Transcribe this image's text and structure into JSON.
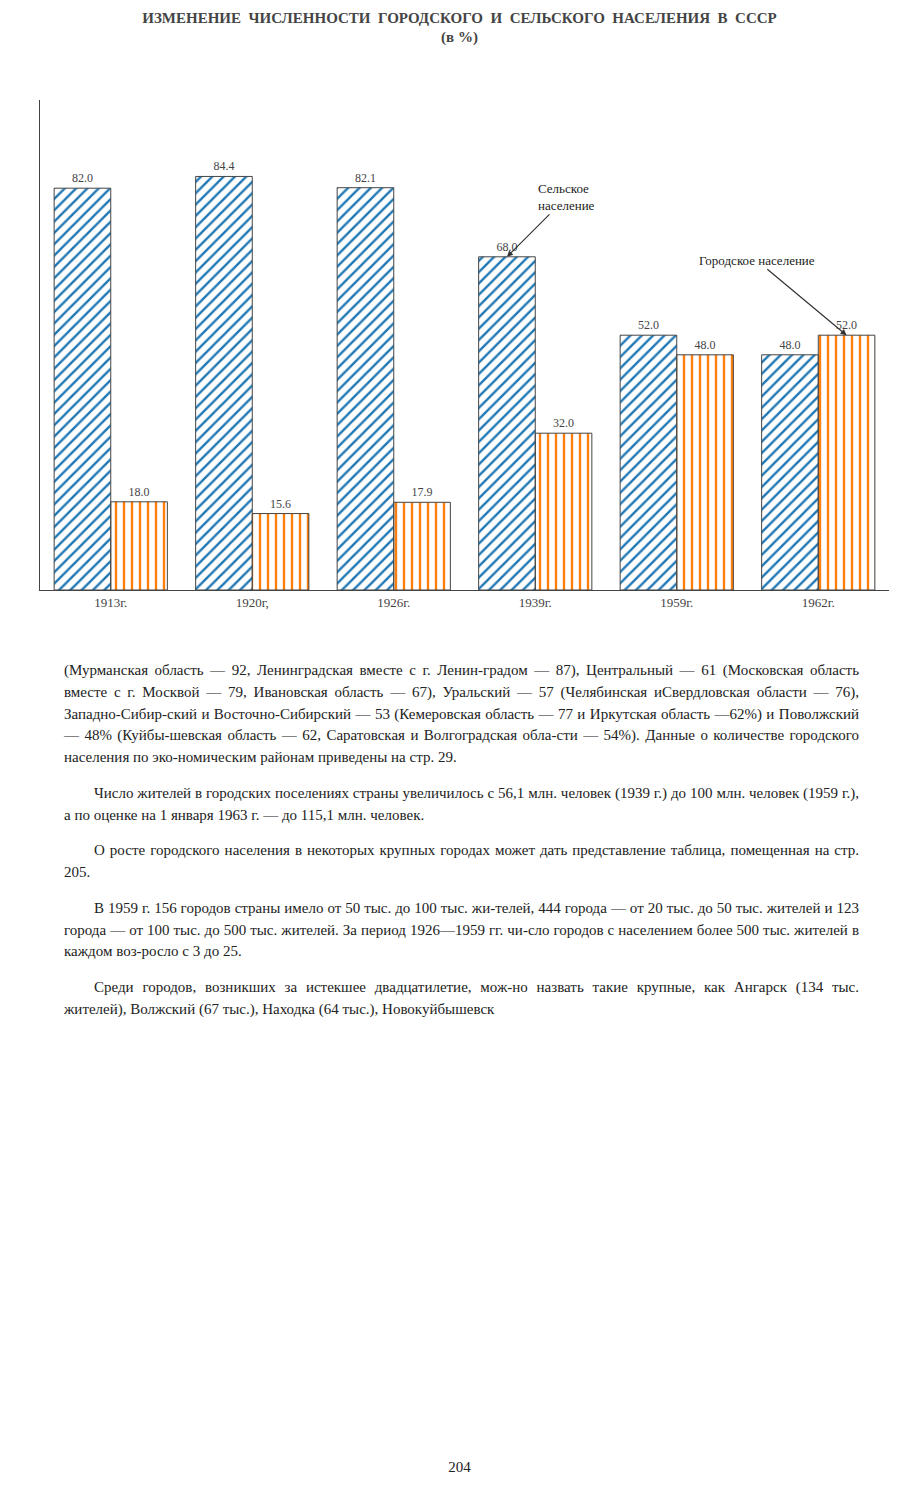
{
  "chart_data": {
    "type": "bar",
    "title": "ИЗМЕНЕНИЕ  ЧИСЛЕННОСТИ  ГОРОДСКОГО  И  СЕЛЬСКОГО  НАСЕЛЕНИЯ  В  СССР",
    "subtitle": "(в %)",
    "categories": [
      "1913г.",
      "1920г,",
      "1926г.",
      "1939г.",
      "1959г.",
      "1962г."
    ],
    "series": [
      {
        "values": [
          82.0,
          84.4,
          82.1,
          68.0,
          52.0,
          48.0
        ],
        "value_labels": [
          "82.0",
          "84.4",
          "82.1",
          "68.0",
          "52.0",
          "48.0"
        ]
      },
      {
        "values": [
          18.0,
          15.6,
          17.9,
          32.0,
          48.0,
          52.0
        ],
        "value_labels": [
          "18.0",
          "15.6",
          "17.9",
          "32.0",
          "48.0",
          "52.0"
        ]
      }
    ],
    "ylim": [
      0,
      100
    ],
    "yticks": [],
    "grid": false,
    "data_labels": true,
    "tick_labels": "x",
    "annotations": [
      {
        "text": "Сельское\nнаселение",
        "x": "1939г.",
        "y": 68.0
      },
      {
        "text": "Городское население",
        "x": "1962г.",
        "y": 52.0
      }
    ]
  },
  "body_text": [
    "(Мурманская область — 92, Ленинградская вместе с г. Ленин-градом — 87), Центральный — 61 (Московская область вместе с г. Москвой — 79, Ивановская область — 67), Уральский — 57 (Челябинская иСвердловская области — 76), Западно-Сибир-ский и Восточно-Сибирский — 53 (Кемеровская область — 77 и Иркутская область —62%) и Поволжский — 48% (Куйбы-шевская область — 62, Саратовская и Волгоградская обла-сти — 54%). Данные о количестве городского населения по эко-номическим районам приведены на стр. 29.",
    "Число жителей в городских поселениях страны увеличилось с 56,1 млн. человек (1939 г.) до 100 млн. человек (1959 г.), а по оценке на 1 января 1963 г. — до 115,1 млн. человек.",
    "О росте городского населения в некоторых крупных городах может дать представление таблица, помещенная на стр. 205.",
    "В 1959 г. 156 городов страны имело от 50 тыс. до 100 тыс. жи-телей, 444 города — от 20 тыс. до 50 тыс. жителей и 123 города — от 100 тыс. до 500 тыс. жителей. За период 1926—1959 гг. чи-сло городов с населением более 500 тыс. жителей в каждом воз-росло с 3 до 25.",
    "Среди городов, возникших за истекшее двадцатилетие, мож-но назвать такие крупные, как Ангарск (134 тыс. жителей), Волжский (67 тыс.), Находка (64 тыс.), Новокуйбышевск"
  ],
  "page_number": "204"
}
